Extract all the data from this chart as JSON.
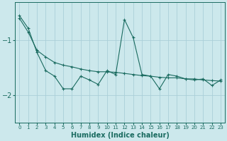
{
  "xlabel": "Humidex (Indice chaleur)",
  "bg_color": "#cce8ec",
  "grid_color": "#aacfd8",
  "line_color": "#1a6b60",
  "x_values": [
    0,
    1,
    2,
    3,
    4,
    5,
    6,
    7,
    8,
    9,
    10,
    11,
    12,
    13,
    14,
    15,
    16,
    17,
    18,
    19,
    20,
    21,
    22,
    23
  ],
  "y_jagged": [
    -0.55,
    -0.78,
    -1.22,
    -1.55,
    -1.65,
    -1.88,
    -1.88,
    -1.65,
    -1.72,
    -1.8,
    -1.55,
    -1.62,
    -0.62,
    -0.95,
    -1.62,
    -1.65,
    -1.88,
    -1.62,
    -1.65,
    -1.7,
    -1.72,
    -1.7,
    -1.82,
    -1.72
  ],
  "y_trend": [
    -0.6,
    -0.85,
    -1.18,
    -1.3,
    -1.4,
    -1.45,
    -1.48,
    -1.52,
    -1.55,
    -1.57,
    -1.57,
    -1.58,
    -1.6,
    -1.62,
    -1.64,
    -1.65,
    -1.67,
    -1.68,
    -1.68,
    -1.7,
    -1.7,
    -1.72,
    -1.73,
    -1.74
  ],
  "ylim": [
    -2.5,
    -0.3
  ],
  "yticks": [
    -2,
    -1
  ],
  "xlim": [
    -0.5,
    23.5
  ],
  "figsize": [
    3.2,
    2.0
  ],
  "dpi": 100
}
